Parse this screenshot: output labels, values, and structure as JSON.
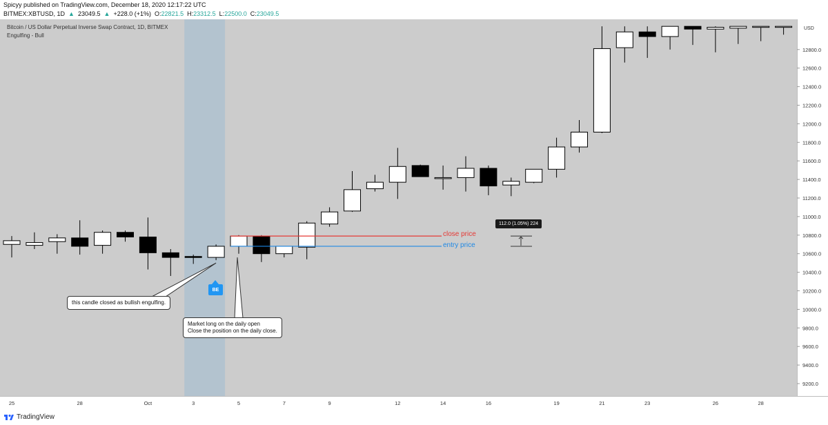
{
  "header": {
    "published": "Spicyy published on TradingView.com, December 18, 2020 12:17:22 UTC",
    "symbol": "BITMEX:XBTUSD, 1D",
    "last": "23049.5",
    "change": "+228.0 (+1%)",
    "o_label": "O:",
    "o_value": "22821.5",
    "h_label": "H:",
    "h_value": "23312.5",
    "l_label": "L:",
    "l_value": "22500.0",
    "c_label": "C:",
    "c_value": "23049.5"
  },
  "legend": {
    "title": "Bitcoin / US Dollar Perpetual Inverse Swap Contract, 1D, BITMEX",
    "indicator": "Engulfing - Bull"
  },
  "annotations": {
    "callout1": "this candle closed as bullish engulfing.",
    "callout2_line1": "Market long on the daily open",
    "callout2_line2": "Close the position on the daily close.",
    "close_price": "close price",
    "entry_price": "entry price",
    "be_badge": "BE",
    "measure": "112.0 (1.05%) 224"
  },
  "footer": {
    "brand": "TradingView"
  },
  "colors": {
    "background": "#cccccc",
    "highlight": "#b3c3cf",
    "close_line": "#e53935",
    "entry_line": "#1e88e5",
    "badge": "#2196f3"
  },
  "chart_data": {
    "type": "candlestick",
    "currency": "USD",
    "y_ticks": [
      9200,
      9400,
      9600,
      9800,
      10000,
      10200,
      10400,
      10600,
      10800,
      11000,
      11200,
      11400,
      11600,
      11800,
      12000,
      12200,
      12400,
      12600,
      12800
    ],
    "ylim": [
      9000,
      13050
    ],
    "x_ticks": [
      {
        "label": "25",
        "i": 0
      },
      {
        "label": "28",
        "i": 3
      },
      {
        "label": "Oct",
        "i": 6
      },
      {
        "label": "3",
        "i": 8
      },
      {
        "label": "5",
        "i": 10
      },
      {
        "label": "7",
        "i": 12
      },
      {
        "label": "9",
        "i": 14
      },
      {
        "label": "12",
        "i": 17
      },
      {
        "label": "14",
        "i": 19
      },
      {
        "label": "16",
        "i": 21
      },
      {
        "label": "19",
        "i": 24
      },
      {
        "label": "21",
        "i": 26
      },
      {
        "label": "23",
        "i": 28
      },
      {
        "label": "26",
        "i": 31
      },
      {
        "label": "28",
        "i": 33
      }
    ],
    "highlight_range": [
      8,
      9
    ],
    "close_price_level": 10790,
    "entry_price_level": 10680,
    "candles": [
      {
        "o": 10700,
        "h": 10790,
        "l": 10560,
        "c": 10740
      },
      {
        "o": 10690,
        "h": 10830,
        "l": 10650,
        "c": 10720
      },
      {
        "o": 10730,
        "h": 10810,
        "l": 10600,
        "c": 10770
      },
      {
        "o": 10770,
        "h": 10960,
        "l": 10590,
        "c": 10680
      },
      {
        "o": 10690,
        "h": 10850,
        "l": 10600,
        "c": 10830
      },
      {
        "o": 10830,
        "h": 10850,
        "l": 10730,
        "c": 10780
      },
      {
        "o": 10780,
        "h": 10990,
        "l": 10430,
        "c": 10610
      },
      {
        "o": 10610,
        "h": 10650,
        "l": 10360,
        "c": 10560
      },
      {
        "o": 10570,
        "h": 10590,
        "l": 10490,
        "c": 10560
      },
      {
        "o": 10560,
        "h": 10700,
        "l": 10530,
        "c": 10680
      },
      {
        "o": 10680,
        "h": 10800,
        "l": 10600,
        "c": 10790
      },
      {
        "o": 10790,
        "h": 10800,
        "l": 10510,
        "c": 10600
      },
      {
        "o": 10600,
        "h": 10680,
        "l": 10560,
        "c": 10680
      },
      {
        "o": 10670,
        "h": 10950,
        "l": 10540,
        "c": 10930
      },
      {
        "o": 10920,
        "h": 11100,
        "l": 10890,
        "c": 11050
      },
      {
        "o": 11060,
        "h": 11490,
        "l": 11050,
        "c": 11290
      },
      {
        "o": 11300,
        "h": 11450,
        "l": 11270,
        "c": 11370
      },
      {
        "o": 11370,
        "h": 11740,
        "l": 11190,
        "c": 11540
      },
      {
        "o": 11550,
        "h": 11560,
        "l": 11430,
        "c": 11430
      },
      {
        "o": 11420,
        "h": 11550,
        "l": 11290,
        "c": 11420
      },
      {
        "o": 11420,
        "h": 11650,
        "l": 11270,
        "c": 11520
      },
      {
        "o": 11520,
        "h": 11550,
        "l": 11230,
        "c": 11330
      },
      {
        "o": 11340,
        "h": 11420,
        "l": 11220,
        "c": 11380
      },
      {
        "o": 11370,
        "h": 11510,
        "l": 11360,
        "c": 11510
      },
      {
        "o": 11510,
        "h": 11850,
        "l": 11420,
        "c": 11750
      },
      {
        "o": 11750,
        "h": 12040,
        "l": 11690,
        "c": 11910
      },
      {
        "o": 11910,
        "h": 13050,
        "l": 11900,
        "c": 12810
      },
      {
        "o": 12820,
        "h": 13050,
        "l": 12660,
        "c": 12990
      },
      {
        "o": 12990,
        "h": 13050,
        "l": 12710,
        "c": 12940
      },
      {
        "o": 12940,
        "h": 13050,
        "l": 12800,
        "c": 13050
      },
      {
        "o": 13050,
        "h": 13050,
        "l": 12850,
        "c": 13020
      },
      {
        "o": 13020,
        "h": 13050,
        "l": 12770,
        "c": 13040
      },
      {
        "o": 13030,
        "h": 13050,
        "l": 12860,
        "c": 13050
      },
      {
        "o": 13050,
        "h": 13050,
        "l": 12890,
        "c": 13050
      },
      {
        "o": 13050,
        "h": 13050,
        "l": 12960,
        "c": 13050
      }
    ]
  }
}
